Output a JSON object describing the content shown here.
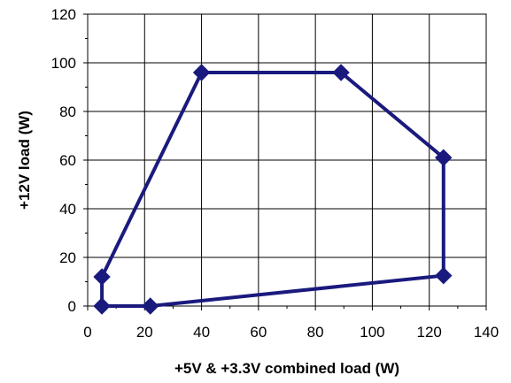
{
  "chart_data": {
    "type": "line",
    "title": "",
    "xlabel": "+5V & +3.3V combined load (W)",
    "ylabel": "+12V load (W)",
    "xlim": [
      0,
      140
    ],
    "ylim": [
      0,
      120
    ],
    "x_ticks": [
      0,
      20,
      40,
      60,
      80,
      100,
      120,
      140
    ],
    "y_ticks": [
      0,
      20,
      40,
      60,
      80,
      100,
      120
    ],
    "x_tick_labels": [
      "0",
      "20",
      "40",
      "60",
      "80",
      "100",
      "120",
      "140"
    ],
    "y_tick_labels": [
      "0",
      "20",
      "40",
      "60",
      "80",
      "100",
      "120"
    ],
    "grid": true,
    "legend": "none",
    "series": [
      {
        "color": "#1a1a7e",
        "marker": "diamond",
        "closed": true,
        "points": [
          {
            "x": 5,
            "y": 12
          },
          {
            "x": 40,
            "y": 96
          },
          {
            "x": 89,
            "y": 96
          },
          {
            "x": 125,
            "y": 61
          },
          {
            "x": 125,
            "y": 12.5
          },
          {
            "x": 22,
            "y": 0
          },
          {
            "x": 5,
            "y": 0
          }
        ]
      }
    ]
  }
}
